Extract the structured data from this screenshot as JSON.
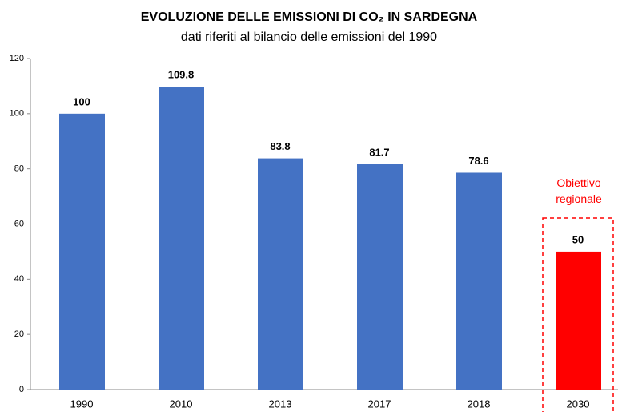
{
  "chart_data": {
    "type": "bar",
    "title": "EVOLUZIONE DELLE EMISSIONI DI CO₂ IN SARDEGNA",
    "subtitle": "dati riferiti al bilancio delle emissioni del 1990",
    "categories": [
      "1990",
      "2010",
      "2013",
      "2017",
      "2018",
      "2030"
    ],
    "values": [
      100,
      109.8,
      83.8,
      81.7,
      78.6,
      50
    ],
    "colors": [
      "#4472c4",
      "#4472c4",
      "#4472c4",
      "#4472c4",
      "#4472c4",
      "#ff0000"
    ],
    "ylim": [
      0,
      120
    ],
    "yticks": [
      0,
      20,
      40,
      60,
      80,
      100,
      120
    ],
    "grid": false,
    "annotation": "Obiettivo regionale",
    "annotation_color": "#ff0000"
  }
}
